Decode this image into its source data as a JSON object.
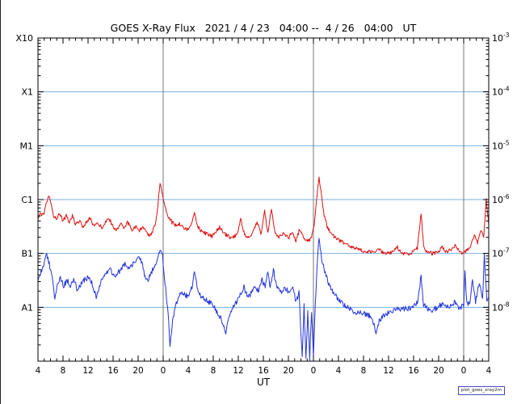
{
  "footer": {
    "credit": "plot_goes_xray2m"
  },
  "colors": {
    "frame": "#000000",
    "grid_horizontal": "#74b2e2",
    "grid_vertical": "#777777",
    "red_series": "#dd1111",
    "blue_series": "#2233dd",
    "text": "#000000"
  },
  "chart_data": {
    "type": "line",
    "title": "GOES X-Ray Flux   2021 / 4 / 23   04:00 --  4 / 26   04:00   UT",
    "xlabel": "UT",
    "x_axis": {
      "range_hours": [
        0,
        72
      ],
      "start_label_hour": 4,
      "tick_interval_hours": 4,
      "minor_tick_hours": 1,
      "tick_labels": [
        "4",
        "8",
        "12",
        "16",
        "20",
        "0",
        "4",
        "8",
        "12",
        "16",
        "20",
        "0",
        "4",
        "8",
        "12",
        "16",
        "20",
        "0",
        "4"
      ],
      "day_boundaries_hours": [
        20,
        44,
        68
      ]
    },
    "y_axis": {
      "scale": "log",
      "range_log10": [
        -9,
        -3
      ],
      "gridline_logs": [
        -4,
        -5,
        -6,
        -7,
        -8
      ],
      "left_labels": [
        {
          "text": "X10",
          "log": -3
        },
        {
          "text": "X1",
          "log": -4
        },
        {
          "text": "M1",
          "log": -5
        },
        {
          "text": "C1",
          "log": -6
        },
        {
          "text": "B1",
          "log": -7
        },
        {
          "text": "A1",
          "log": -8
        }
      ],
      "right_labels": [
        {
          "base": "10",
          "exp": "-3",
          "log": -3
        },
        {
          "base": "10",
          "exp": "-4",
          "log": -4
        },
        {
          "base": "10",
          "exp": "-5",
          "log": -5
        },
        {
          "base": "10",
          "exp": "-6",
          "log": -6
        },
        {
          "base": "10",
          "exp": "-7",
          "log": -7
        },
        {
          "base": "10",
          "exp": "-8",
          "log": -8
        }
      ]
    },
    "series": [
      {
        "name": "xray-long-1-8A",
        "color": "#dd1111",
        "noise": 0.035,
        "seed": 12345,
        "points": [
          [
            0,
            -6.35
          ],
          [
            0.4,
            -6.25
          ],
          [
            0.9,
            -6.3
          ],
          [
            1.3,
            -6.1
          ],
          [
            1.7,
            -5.92
          ],
          [
            2.1,
            -6.1
          ],
          [
            2.5,
            -6.3
          ],
          [
            3,
            -6.35
          ],
          [
            3.5,
            -6.25
          ],
          [
            4,
            -6.4
          ],
          [
            4.5,
            -6.3
          ],
          [
            5,
            -6.42
          ],
          [
            5.5,
            -6.3
          ],
          [
            6,
            -6.45
          ],
          [
            6.6,
            -6.4
          ],
          [
            7.2,
            -6.5
          ],
          [
            7.8,
            -6.42
          ],
          [
            8.3,
            -6.35
          ],
          [
            9,
            -6.5
          ],
          [
            9.6,
            -6.45
          ],
          [
            10.2,
            -6.52
          ],
          [
            10.8,
            -6.42
          ],
          [
            11.4,
            -6.35
          ],
          [
            12,
            -6.52
          ],
          [
            12.6,
            -6.55
          ],
          [
            13.2,
            -6.45
          ],
          [
            13.8,
            -6.55
          ],
          [
            14.3,
            -6.42
          ],
          [
            15,
            -6.55
          ],
          [
            15.6,
            -6.5
          ],
          [
            16.2,
            -6.58
          ],
          [
            16.8,
            -6.5
          ],
          [
            17.3,
            -6.62
          ],
          [
            17.8,
            -6.66
          ],
          [
            18.3,
            -6.6
          ],
          [
            18.8,
            -6.45
          ],
          [
            19.1,
            -6.15
          ],
          [
            19.5,
            -5.67
          ],
          [
            19.8,
            -5.85
          ],
          [
            20.2,
            -6.1
          ],
          [
            20.8,
            -6.3
          ],
          [
            21.4,
            -6.42
          ],
          [
            22,
            -6.48
          ],
          [
            22.6,
            -6.44
          ],
          [
            23.2,
            -6.52
          ],
          [
            24,
            -6.56
          ],
          [
            24.6,
            -6.45
          ],
          [
            25,
            -6.22
          ],
          [
            25.5,
            -6.5
          ],
          [
            26.2,
            -6.6
          ],
          [
            27,
            -6.64
          ],
          [
            27.8,
            -6.68
          ],
          [
            28.4,
            -6.6
          ],
          [
            29,
            -6.52
          ],
          [
            29.6,
            -6.62
          ],
          [
            30.4,
            -6.68
          ],
          [
            31,
            -6.72
          ],
          [
            31.8,
            -6.64
          ],
          [
            32.4,
            -6.35
          ],
          [
            33,
            -6.66
          ],
          [
            33.8,
            -6.72
          ],
          [
            34.4,
            -6.6
          ],
          [
            35,
            -6.4
          ],
          [
            35.6,
            -6.65
          ],
          [
            36.2,
            -6.2
          ],
          [
            36.7,
            -6.62
          ],
          [
            37.3,
            -6.15
          ],
          [
            37.8,
            -6.6
          ],
          [
            38.4,
            -6.7
          ],
          [
            39.2,
            -6.62
          ],
          [
            40,
            -6.72
          ],
          [
            40.6,
            -6.6
          ],
          [
            41.2,
            -6.76
          ],
          [
            41.8,
            -6.55
          ],
          [
            42.4,
            -6.7
          ],
          [
            43,
            -6.78
          ],
          [
            43.6,
            -6.72
          ],
          [
            44.1,
            -6.5
          ],
          [
            44.5,
            -6.0
          ],
          [
            44.9,
            -5.6
          ],
          [
            45.3,
            -5.95
          ],
          [
            45.7,
            -6.3
          ],
          [
            46.2,
            -6.5
          ],
          [
            47,
            -6.65
          ],
          [
            48,
            -6.75
          ],
          [
            49,
            -6.82
          ],
          [
            50,
            -6.88
          ],
          [
            51,
            -6.92
          ],
          [
            52,
            -6.95
          ],
          [
            53,
            -6.97
          ],
          [
            53.8,
            -6.99
          ],
          [
            54.4,
            -6.9
          ],
          [
            55,
            -6.98
          ],
          [
            56,
            -7.0
          ],
          [
            56.8,
            -6.96
          ],
          [
            57.4,
            -6.88
          ],
          [
            58,
            -7.0
          ],
          [
            59,
            -7.01
          ],
          [
            60,
            -6.97
          ],
          [
            60.6,
            -6.9
          ],
          [
            61.2,
            -6.25
          ],
          [
            61.6,
            -6.88
          ],
          [
            62.2,
            -6.97
          ],
          [
            63,
            -7.0
          ],
          [
            64,
            -6.97
          ],
          [
            64.6,
            -6.88
          ],
          [
            65.2,
            -6.97
          ],
          [
            66,
            -6.93
          ],
          [
            66.6,
            -6.84
          ],
          [
            67.2,
            -6.96
          ],
          [
            68,
            -7.0
          ],
          [
            68.6,
            -6.92
          ],
          [
            69.2,
            -6.85
          ],
          [
            69.7,
            -6.65
          ],
          [
            70.2,
            -6.82
          ],
          [
            70.7,
            -6.55
          ],
          [
            71.2,
            -6.7
          ],
          [
            71.6,
            -6.0
          ],
          [
            72,
            -6.45
          ]
        ]
      },
      {
        "name": "xray-short-05-4A",
        "color": "#2233dd",
        "noise": 0.05,
        "seed": 67890,
        "points": [
          [
            0,
            -7.5
          ],
          [
            0.4,
            -7.35
          ],
          [
            0.9,
            -7.25
          ],
          [
            1.4,
            -7.0
          ],
          [
            1.8,
            -7.2
          ],
          [
            2.2,
            -7.4
          ],
          [
            2.7,
            -7.85
          ],
          [
            3.1,
            -7.55
          ],
          [
            3.6,
            -7.45
          ],
          [
            4.1,
            -7.6
          ],
          [
            4.7,
            -7.5
          ],
          [
            5.2,
            -7.62
          ],
          [
            5.7,
            -7.48
          ],
          [
            6.2,
            -7.65
          ],
          [
            6.8,
            -7.58
          ],
          [
            7.4,
            -7.5
          ],
          [
            8,
            -7.44
          ],
          [
            8.6,
            -7.55
          ],
          [
            9.3,
            -7.8
          ],
          [
            9.8,
            -7.6
          ],
          [
            10.4,
            -7.45
          ],
          [
            11,
            -7.35
          ],
          [
            11.6,
            -7.3
          ],
          [
            12.2,
            -7.42
          ],
          [
            12.8,
            -7.35
          ],
          [
            13.4,
            -7.28
          ],
          [
            14,
            -7.18
          ],
          [
            14.6,
            -7.28
          ],
          [
            15.2,
            -7.2
          ],
          [
            15.8,
            -7.12
          ],
          [
            16.4,
            -7.08
          ],
          [
            17,
            -7.38
          ],
          [
            17.5,
            -7.52
          ],
          [
            18,
            -7.38
          ],
          [
            18.6,
            -7.22
          ],
          [
            19.1,
            -7.1
          ],
          [
            19.5,
            -6.9
          ],
          [
            19.9,
            -7.05
          ],
          [
            20.3,
            -7.55
          ],
          [
            20.8,
            -8.15
          ],
          [
            21.1,
            -8.75
          ],
          [
            21.4,
            -8.35
          ],
          [
            21.9,
            -7.98
          ],
          [
            22.4,
            -7.82
          ],
          [
            22.9,
            -7.72
          ],
          [
            23.5,
            -7.78
          ],
          [
            24.1,
            -7.8
          ],
          [
            24.6,
            -7.62
          ],
          [
            25,
            -7.35
          ],
          [
            25.5,
            -7.68
          ],
          [
            26.2,
            -7.82
          ],
          [
            27,
            -7.88
          ],
          [
            27.8,
            -7.95
          ],
          [
            28.6,
            -8.08
          ],
          [
            29.3,
            -8.22
          ],
          [
            30,
            -8.45
          ],
          [
            30.6,
            -8.18
          ],
          [
            31.2,
            -7.98
          ],
          [
            31.9,
            -7.88
          ],
          [
            32.5,
            -7.72
          ],
          [
            32.9,
            -7.62
          ],
          [
            33.5,
            -7.82
          ],
          [
            34.1,
            -7.74
          ],
          [
            34.7,
            -7.62
          ],
          [
            35.3,
            -7.7
          ],
          [
            35.8,
            -7.48
          ],
          [
            36.3,
            -7.65
          ],
          [
            36.7,
            -7.35
          ],
          [
            37.1,
            -7.62
          ],
          [
            37.6,
            -7.3
          ],
          [
            38.1,
            -7.62
          ],
          [
            38.7,
            -7.72
          ],
          [
            39.4,
            -7.64
          ],
          [
            40.1,
            -7.72
          ],
          [
            40.7,
            -7.6
          ],
          [
            41.2,
            -7.92
          ],
          [
            41.7,
            -7.72
          ],
          [
            42,
            -8.45
          ],
          [
            42.2,
            -8.95
          ],
          [
            42.5,
            -7.98
          ],
          [
            42.8,
            -8.92
          ],
          [
            43.1,
            -8.08
          ],
          [
            43.4,
            -8.94
          ],
          [
            43.7,
            -8.12
          ],
          [
            44,
            -8.9
          ],
          [
            44.3,
            -7.95
          ],
          [
            44.6,
            -7.15
          ],
          [
            44.9,
            -6.7
          ],
          [
            45.3,
            -7.08
          ],
          [
            45.8,
            -7.35
          ],
          [
            46.3,
            -7.52
          ],
          [
            47,
            -7.7
          ],
          [
            48,
            -7.85
          ],
          [
            49,
            -7.96
          ],
          [
            50,
            -8.05
          ],
          [
            51,
            -8.1
          ],
          [
            52,
            -8.12
          ],
          [
            53,
            -8.16
          ],
          [
            53.6,
            -8.3
          ],
          [
            54,
            -8.45
          ],
          [
            54.5,
            -8.26
          ],
          [
            55,
            -8.16
          ],
          [
            56,
            -8.1
          ],
          [
            57,
            -8.06
          ],
          [
            58,
            -8.02
          ],
          [
            59,
            -8.03
          ],
          [
            60,
            -7.97
          ],
          [
            60.6,
            -7.9
          ],
          [
            61.2,
            -7.42
          ],
          [
            61.6,
            -7.96
          ],
          [
            62.2,
            -8.02
          ],
          [
            63,
            -8.05
          ],
          [
            64,
            -8.0
          ],
          [
            64.6,
            -7.92
          ],
          [
            65.2,
            -8.0
          ],
          [
            66,
            -7.96
          ],
          [
            66.6,
            -7.9
          ],
          [
            67.2,
            -8.0
          ],
          [
            68,
            -7.98
          ],
          [
            68.2,
            -7.35
          ],
          [
            68.5,
            -7.95
          ],
          [
            69,
            -7.88
          ],
          [
            69.4,
            -7.5
          ],
          [
            69.9,
            -7.9
          ],
          [
            70.5,
            -7.55
          ],
          [
            71,
            -7.88
          ],
          [
            71.3,
            -7.05
          ],
          [
            71.7,
            -7.9
          ],
          [
            72,
            -7.8
          ]
        ]
      }
    ]
  }
}
